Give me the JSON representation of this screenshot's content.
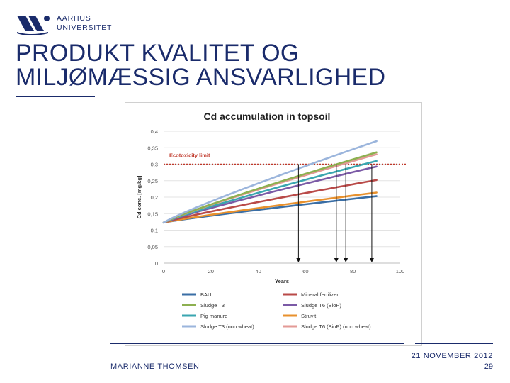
{
  "logo": {
    "line1": "AARHUS",
    "line2": "UNIVERSITET"
  },
  "title": {
    "line1": "PRODUKT KVALITET OG",
    "line2": "MILJØMÆSSIG ANSVARLIGHED"
  },
  "footer": {
    "author": "MARIANNE THOMSEN",
    "date": "21 NOVEMBER 2012",
    "page": "29"
  },
  "colors": {
    "brand": "#1a2b6b"
  },
  "chart_data": {
    "type": "line",
    "title": "Cd accumulation in topsoil",
    "xlabel": "Years",
    "ylabel": "Cd conc. [mg/kg]",
    "xlim": [
      0,
      100
    ],
    "ylim": [
      0,
      0.4
    ],
    "x_ticks": [
      "0",
      "20",
      "40",
      "60",
      "80",
      "100"
    ],
    "y_ticks": [
      "0",
      "0,05",
      "0,1",
      "0,15",
      "0,2",
      "0,25",
      "0,3",
      "0,35",
      "0,4"
    ],
    "grid": true,
    "legend_position": "bottom",
    "x": [
      0,
      90
    ],
    "series": [
      {
        "name": "BAU",
        "color": "#3a6ea5",
        "values": [
          0.123,
          0.203
        ]
      },
      {
        "name": "Mineral fertilizer",
        "color": "#b94a48",
        "values": [
          0.123,
          0.252
        ]
      },
      {
        "name": "Sludge T3",
        "color": "#8db050",
        "values": [
          0.123,
          0.336
        ]
      },
      {
        "name": "Sludge T6 (BioP)",
        "color": "#7b5aa6",
        "values": [
          0.123,
          0.293
        ]
      },
      {
        "name": "Pig manure",
        "color": "#3aa6b0",
        "values": [
          0.123,
          0.31
        ]
      },
      {
        "name": "Struvit",
        "color": "#e8912d",
        "values": [
          0.123,
          0.214
        ]
      },
      {
        "name": "Sludge T3 (non wheat)",
        "color": "#9bb5dc",
        "values": [
          0.123,
          0.37
        ]
      },
      {
        "name": "Sludge T6 (BioP) (non wheat)",
        "color": "#e39a96",
        "values": [
          0.123,
          0.33
        ]
      }
    ],
    "threshold": {
      "label": "Ecotoxicity limit",
      "value": 0.3,
      "color": "#c0392b"
    },
    "arrows_x": [
      57,
      73,
      77,
      88
    ]
  }
}
